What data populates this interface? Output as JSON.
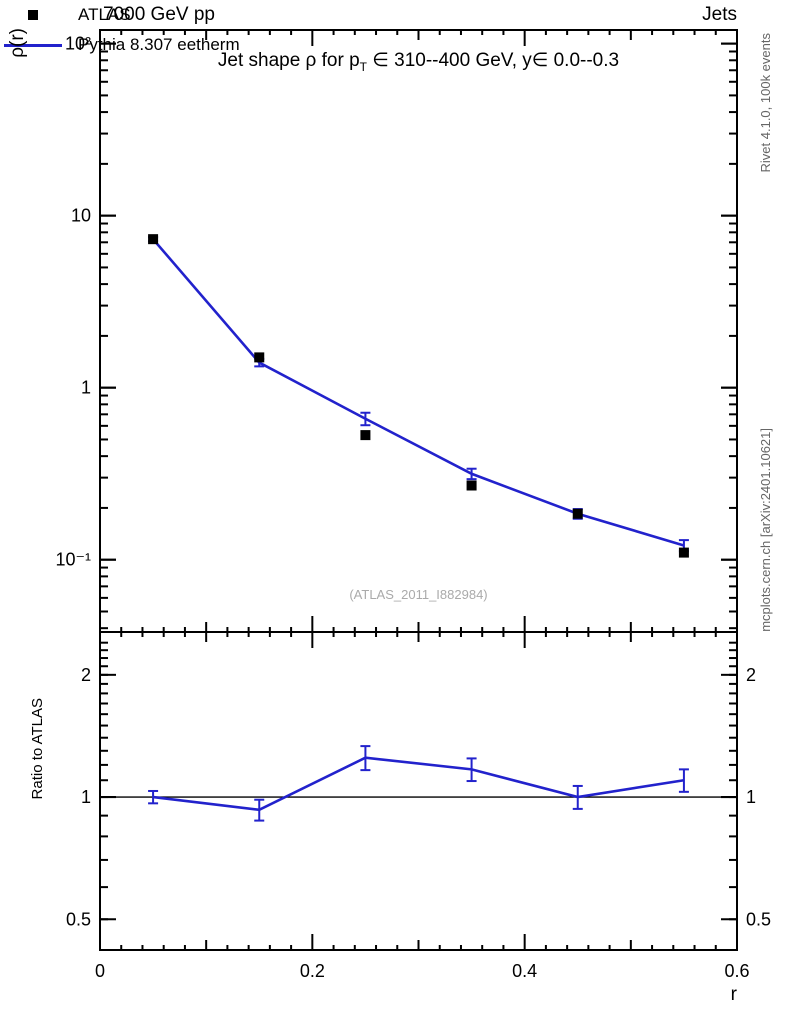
{
  "header": {
    "left": "7000 GeV pp",
    "right": "Jets"
  },
  "title": {
    "full": "Jet shape ρ for p_T ∈ 310--400 GeV, y∈ 0.0--0.3",
    "pre": "Jet shape ρ for p",
    "sub": "T",
    "post": " ∈ 310--400 GeV, y∈ 0.0--0.3"
  },
  "watermark": "(ATLAS_2011_I882984)",
  "side_notes": {
    "top_right": "Rivet 4.1.0,  100k events",
    "bottom_right": "mcplots.cern.ch [arXiv:2401.10621]"
  },
  "colors": {
    "mc_line": "#2222cc",
    "data_marker": "#000000",
    "frame": "#000000",
    "watermark": "#aaaaaa",
    "side_note": "#666666"
  },
  "chart_data": [
    {
      "type": "scatter",
      "panel": "main",
      "title": "Jet shape ρ for p_T ∈ 310--400 GeV, y∈ 0.0--0.3",
      "xlabel": "",
      "ylabel": "ρ(r)",
      "xscale": "linear",
      "yscale": "log",
      "xlim": [
        0,
        0.6
      ],
      "ylim": [
        0.038,
        120
      ],
      "grid": false,
      "legend_position": "top-left",
      "x": [
        0.05,
        0.15,
        0.25,
        0.35,
        0.45,
        0.55
      ],
      "series": [
        {
          "name": "ATLAS",
          "style": "scatter",
          "marker": "filled-square",
          "color": "#000000",
          "y": [
            7.3,
            1.5,
            0.53,
            0.27,
            0.185,
            0.11
          ],
          "yerr": [
            0.2,
            0.05,
            0.02,
            0.01,
            0.007,
            0.005
          ]
        },
        {
          "name": "Pythia 8.307 eetherm",
          "style": "line",
          "color": "#2222cc",
          "y": [
            7.3,
            1.4,
            0.66,
            0.316,
            0.185,
            0.121
          ],
          "yerr": [
            0.2,
            0.07,
            0.055,
            0.022,
            0.012,
            0.009
          ]
        }
      ],
      "yticks": [
        {
          "v": 100,
          "label": "10²"
        },
        {
          "v": 10,
          "label": "10"
        },
        {
          "v": 1,
          "label": "1"
        },
        {
          "v": 0.1,
          "label": "10⁻¹"
        }
      ],
      "xticks": [
        {
          "v": 0,
          "label": ""
        },
        {
          "v": 0.2,
          "label": ""
        },
        {
          "v": 0.4,
          "label": ""
        },
        {
          "v": 0.6,
          "label": ""
        }
      ],
      "minor": "log"
    },
    {
      "type": "line",
      "panel": "ratio",
      "title": "",
      "xlabel": "r",
      "ylabel": "Ratio to ATLAS",
      "xscale": "linear",
      "yscale": "log",
      "xlim": [
        0,
        0.6
      ],
      "ylim": [
        0.42,
        2.55
      ],
      "refline": 1,
      "x": [
        0.05,
        0.15,
        0.25,
        0.35,
        0.45,
        0.55
      ],
      "series": [
        {
          "name": "Pythia 8.307 eetherm / ATLAS",
          "style": "line",
          "color": "#2222cc",
          "y": [
            1.0,
            0.93,
            1.25,
            1.17,
            1.0,
            1.1
          ],
          "yerr": [
            0.035,
            0.055,
            0.085,
            0.075,
            0.065,
            0.07
          ]
        }
      ],
      "yticks": [
        {
          "v": 2,
          "label": "2"
        },
        {
          "v": 1,
          "label": "1"
        },
        {
          "v": 0.5,
          "label": "0.5"
        }
      ],
      "xticks": [
        {
          "v": 0,
          "label": "0"
        },
        {
          "v": 0.2,
          "label": "0.2"
        },
        {
          "v": 0.4,
          "label": "0.4"
        },
        {
          "v": 0.6,
          "label": "0.6"
        }
      ],
      "minor": "fine",
      "minor_step": 0.1
    }
  ]
}
